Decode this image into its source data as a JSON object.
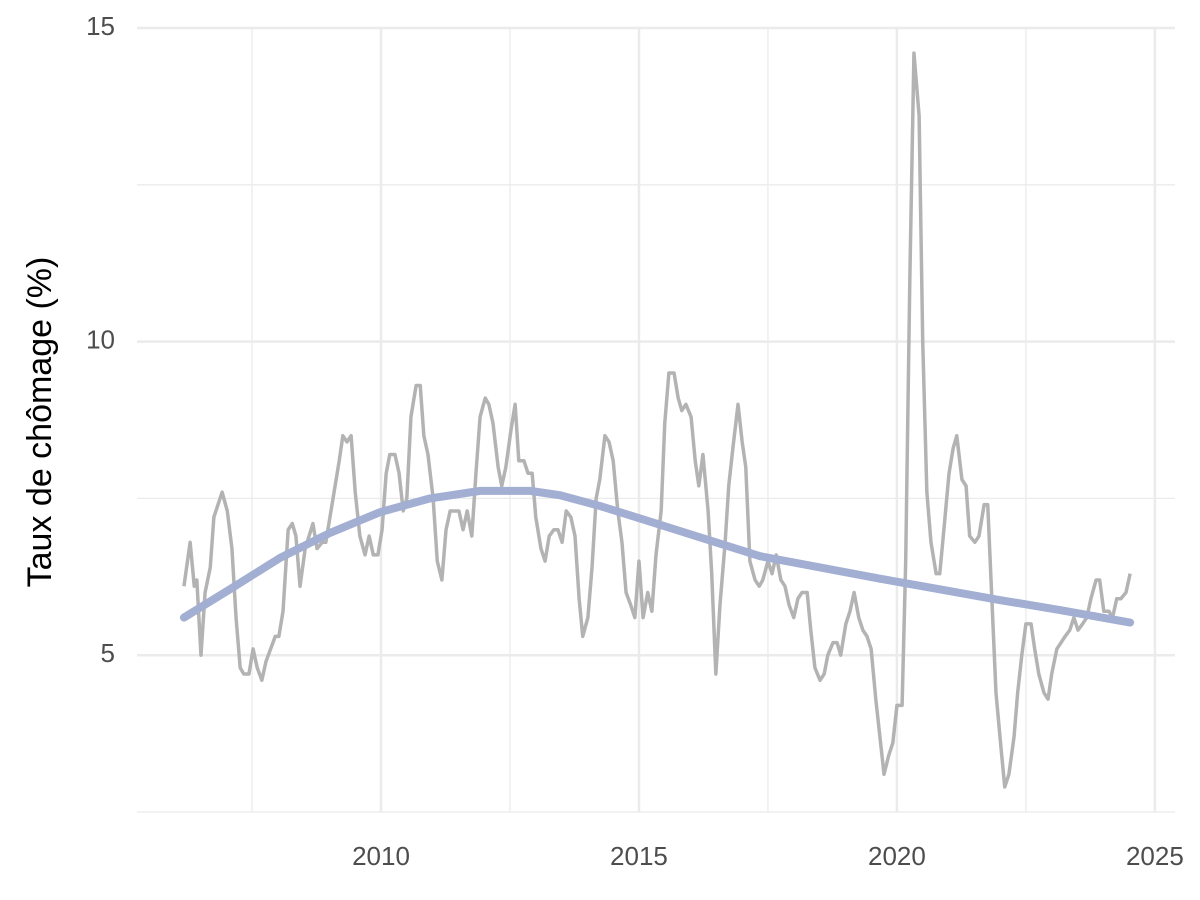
{
  "chart_data": {
    "type": "line",
    "y_label": "Taux de chômage (%)",
    "xlim": [
      2005.27,
      2025.39
    ],
    "xticks": [
      2010,
      2015,
      2020,
      2025
    ],
    "minor_xticks": [
      2007.5,
      2012.5,
      2017.5,
      2022.5
    ],
    "ylim": [
      2.5,
      15
    ],
    "yticks": [
      5,
      10,
      15
    ],
    "minor_yticks": [
      2.5,
      7.5,
      12.5
    ],
    "grid": true,
    "series": [
      {
        "color": "#b3b3b3",
        "x": [
          2006.18,
          2006.3,
          2006.38,
          2006.43,
          2006.51,
          2006.59,
          2006.69,
          2006.76,
          2006.92,
          2007.02,
          2007.11,
          2007.19,
          2007.27,
          2007.34,
          2007.44,
          2007.52,
          2007.6,
          2007.69,
          2007.77,
          2007.95,
          2008.02,
          2008.1,
          2008.2,
          2008.28,
          2008.35,
          2008.43,
          2008.53,
          2008.68,
          2008.76,
          2008.86,
          2008.93,
          2009.03,
          2009.19,
          2009.26,
          2009.34,
          2009.42,
          2009.5,
          2009.59,
          2009.69,
          2009.77,
          2009.85,
          2009.94,
          2010.02,
          2010.1,
          2010.17,
          2010.27,
          2010.35,
          2010.43,
          2010.5,
          2010.58,
          2010.68,
          2010.76,
          2010.83,
          2010.91,
          2011.01,
          2011.09,
          2011.18,
          2011.26,
          2011.34,
          2011.51,
          2011.59,
          2011.67,
          2011.76,
          2011.84,
          2011.92,
          2012.02,
          2012.09,
          2012.17,
          2012.27,
          2012.34,
          2012.42,
          2012.52,
          2012.6,
          2012.67,
          2012.77,
          2012.85,
          2012.93,
          2013.0,
          2013.1,
          2013.18,
          2013.26,
          2013.35,
          2013.43,
          2013.51,
          2013.59,
          2013.68,
          2013.76,
          2013.84,
          2013.91,
          2014.01,
          2014.09,
          2014.17,
          2014.24,
          2014.34,
          2014.42,
          2014.5,
          2014.59,
          2014.67,
          2014.75,
          2014.84,
          2014.92,
          2015.0,
          2015.08,
          2015.17,
          2015.25,
          2015.33,
          2015.43,
          2015.5,
          2015.58,
          2015.68,
          2015.76,
          2015.83,
          2015.91,
          2016.01,
          2016.09,
          2016.16,
          2016.24,
          2016.34,
          2016.41,
          2016.49,
          2016.57,
          2016.67,
          2016.74,
          2016.82,
          2016.92,
          2017.0,
          2017.07,
          2017.15,
          2017.25,
          2017.33,
          2017.4,
          2017.5,
          2017.58,
          2017.66,
          2017.75,
          2017.83,
          2017.91,
          2018.0,
          2018.08,
          2018.16,
          2018.26,
          2018.33,
          2018.41,
          2018.51,
          2018.59,
          2018.66,
          2018.76,
          2018.84,
          2018.91,
          2019.01,
          2019.09,
          2019.17,
          2019.26,
          2019.34,
          2019.42,
          2019.5,
          2019.59,
          2019.67,
          2019.75,
          2019.84,
          2019.92,
          2020.0,
          2020.1,
          2020.17,
          2020.25,
          2020.33,
          2020.43,
          2020.5,
          2020.58,
          2020.66,
          2020.76,
          2020.83,
          2020.91,
          2021.01,
          2021.09,
          2021.16,
          2021.26,
          2021.34,
          2021.41,
          2021.51,
          2021.59,
          2021.69,
          2021.76,
          2021.84,
          2021.92,
          2022.02,
          2022.09,
          2022.17,
          2022.27,
          2022.34,
          2022.42,
          2022.5,
          2022.6,
          2022.67,
          2022.75,
          2022.85,
          2022.93,
          2023.0,
          2023.1,
          2023.18,
          2023.26,
          2023.35,
          2023.43,
          2023.51,
          2023.6,
          2023.68,
          2023.76,
          2023.86,
          2023.93,
          2024.01,
          2024.11,
          2024.18,
          2024.26,
          2024.34,
          2024.44,
          2024.52
        ],
        "values": [
          6.1,
          6.8,
          6.1,
          6.2,
          5.0,
          6.0,
          6.4,
          7.2,
          7.6,
          7.3,
          6.7,
          5.6,
          4.8,
          4.7,
          4.7,
          5.1,
          4.8,
          4.6,
          4.9,
          5.3,
          5.3,
          5.7,
          7.0,
          7.1,
          6.9,
          6.1,
          6.7,
          7.1,
          6.7,
          6.8,
          6.8,
          7.3,
          8.1,
          8.5,
          8.4,
          8.5,
          7.6,
          6.9,
          6.6,
          6.9,
          6.6,
          6.6,
          7.0,
          7.9,
          8.2,
          8.2,
          7.9,
          7.3,
          7.5,
          8.8,
          9.3,
          9.3,
          8.5,
          8.2,
          7.5,
          6.5,
          6.2,
          7.0,
          7.3,
          7.3,
          7.0,
          7.3,
          6.9,
          7.9,
          8.8,
          9.1,
          9.0,
          8.7,
          8.0,
          7.7,
          8.0,
          8.6,
          9.0,
          8.1,
          8.1,
          7.9,
          7.9,
          7.2,
          6.7,
          6.5,
          6.9,
          7.0,
          7.0,
          6.8,
          7.3,
          7.2,
          6.9,
          5.9,
          5.3,
          5.6,
          6.4,
          7.5,
          7.8,
          8.5,
          8.4,
          8.1,
          7.3,
          6.8,
          6.0,
          5.8,
          5.6,
          6.5,
          5.6,
          6.0,
          5.7,
          6.6,
          7.3,
          8.7,
          9.5,
          9.5,
          9.1,
          8.9,
          9.0,
          8.8,
          8.1,
          7.7,
          8.2,
          7.3,
          6.3,
          4.7,
          5.8,
          6.8,
          7.7,
          8.3,
          9.0,
          8.4,
          8.0,
          6.5,
          6.2,
          6.1,
          6.2,
          6.5,
          6.3,
          6.6,
          6.2,
          6.1,
          5.8,
          5.6,
          5.9,
          6.0,
          6.0,
          5.4,
          4.8,
          4.6,
          4.7,
          5.0,
          5.2,
          5.2,
          5.0,
          5.5,
          5.7,
          6.0,
          5.6,
          5.4,
          5.3,
          5.1,
          4.3,
          3.7,
          3.1,
          3.4,
          3.6,
          4.2,
          4.2,
          6.5,
          11.0,
          14.6,
          13.6,
          10.0,
          7.6,
          6.8,
          6.3,
          6.3,
          7.0,
          7.9,
          8.3,
          8.5,
          7.8,
          7.7,
          6.9,
          6.8,
          6.9,
          7.4,
          7.4,
          5.9,
          4.4,
          3.5,
          2.9,
          3.1,
          3.7,
          4.4,
          5.0,
          5.5,
          5.5,
          5.1,
          4.7,
          4.4,
          4.3,
          4.7,
          5.1,
          5.2,
          5.3,
          5.4,
          5.6,
          5.4,
          5.5,
          5.6,
          5.9,
          6.2,
          6.2,
          5.7,
          5.7,
          5.6,
          5.9,
          5.9,
          6.0,
          6.3
        ]
      },
      {
        "color": "#a2afd3",
        "x": [
          2006.18,
          2007.07,
          2008.04,
          2009.01,
          2009.98,
          2010.95,
          2011.92,
          2012.89,
          2013.47,
          2014.24,
          2015.02,
          2016.18,
          2017.34,
          2018.51,
          2019.67,
          2020.83,
          2021.99,
          2023.16,
          2024.52
        ],
        "values": [
          5.6,
          6.05,
          6.55,
          6.95,
          7.28,
          7.5,
          7.62,
          7.62,
          7.55,
          7.38,
          7.18,
          6.88,
          6.58,
          6.4,
          6.22,
          6.05,
          5.88,
          5.72,
          5.52
        ]
      }
    ]
  }
}
